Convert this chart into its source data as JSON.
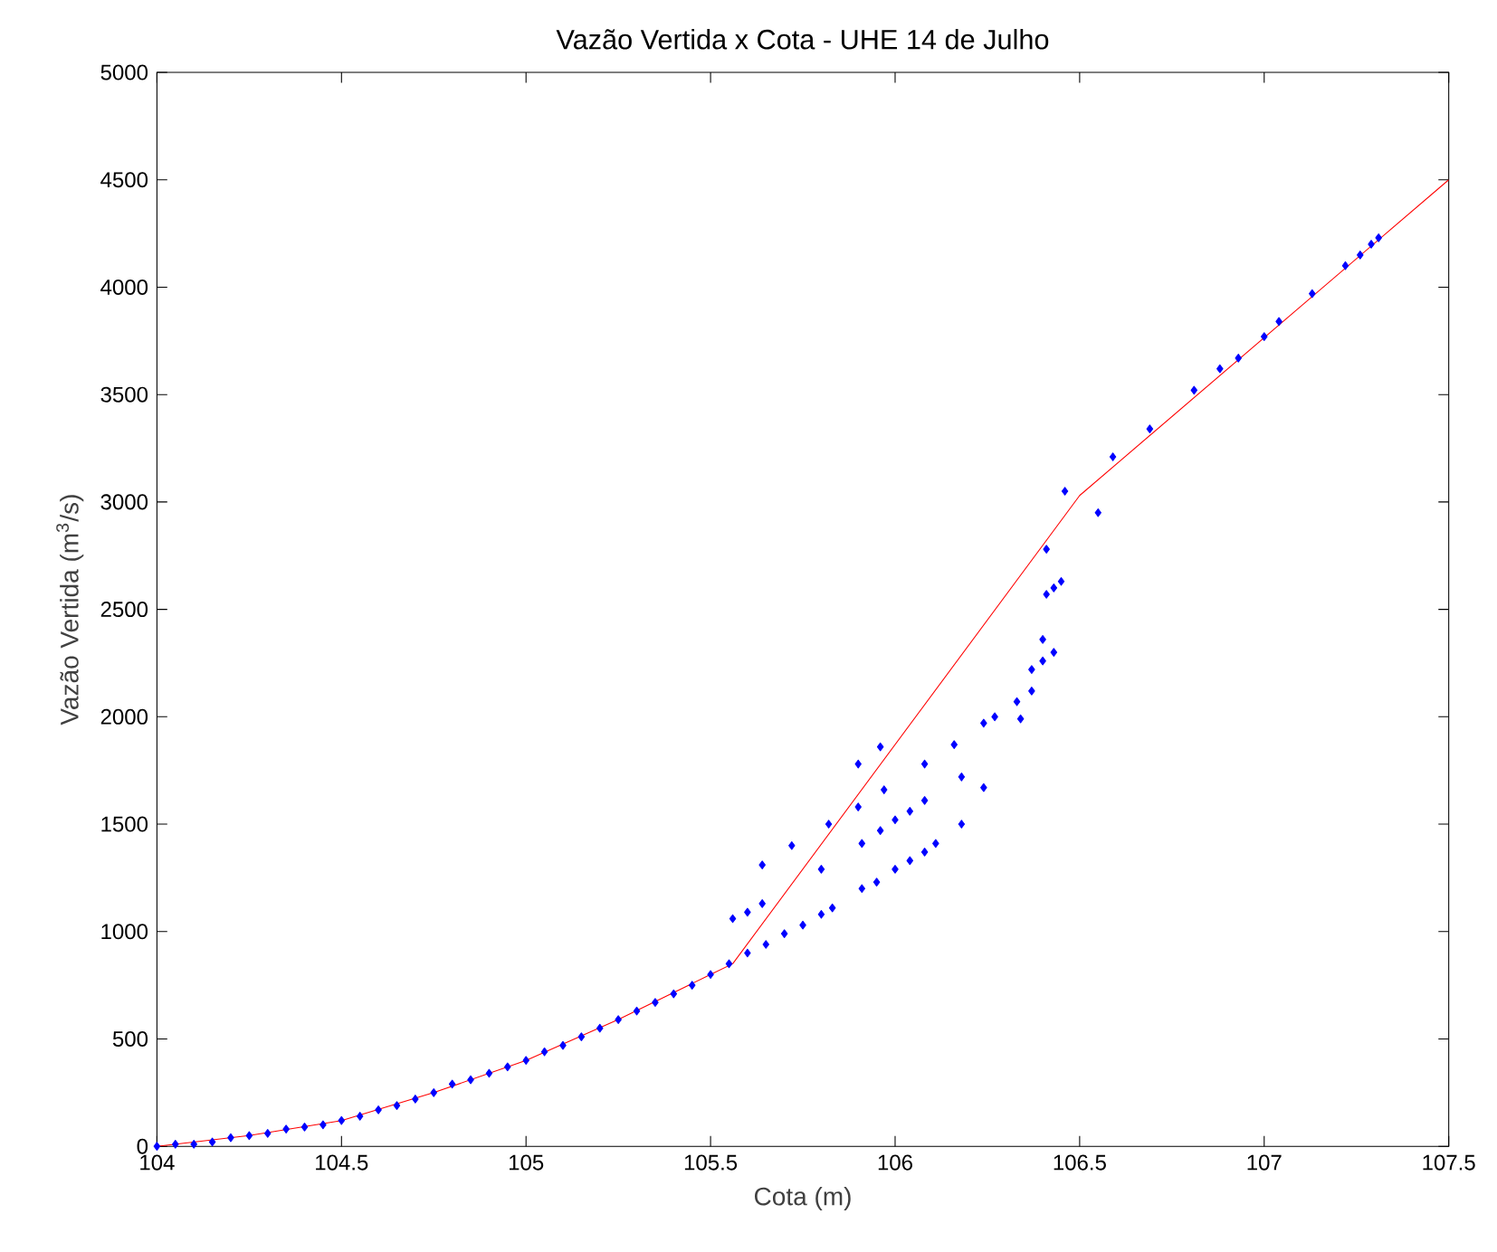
{
  "chart_data": {
    "type": "scatter",
    "title": "Vazão Vertida x Cota - UHE 14 de Julho",
    "xlabel": "Cota (m)",
    "ylabel": "Vazão Vertida (m$^{3}$/s)",
    "xlim": [
      104,
      107.5
    ],
    "ylim": [
      0,
      5000
    ],
    "xticks": [
      104,
      104.5,
      105,
      105.5,
      106,
      106.5,
      107,
      107.5
    ],
    "yticks": [
      0,
      500,
      1000,
      1500,
      2000,
      2500,
      3000,
      3500,
      4000,
      4500,
      5000
    ],
    "grid": false,
    "series": [
      {
        "color": "#0000ff",
        "marker": "diamond",
        "x": [
          104,
          104.05,
          104.1,
          104.15,
          104.2,
          104.25,
          104.3,
          104.35,
          104.4,
          104.45,
          104.5,
          104.55,
          104.6,
          104.65,
          104.7,
          104.75,
          104.8,
          104.85,
          104.9,
          104.95,
          105,
          105.05,
          105.1,
          105.15,
          105.2,
          105.25,
          105.3,
          105.35,
          105.4,
          105.45,
          105.5,
          105.55,
          105.6,
          105.65,
          105.7,
          105.75,
          105.8,
          105.83,
          105.91,
          105.95,
          106.0,
          106.04,
          106.08,
          106.11,
          105.91,
          105.96,
          106.0,
          106.04,
          106.08,
          105.56,
          105.6,
          105.64,
          105.64,
          105.72,
          105.8,
          105.82,
          105.9,
          105.9,
          105.96,
          105.97,
          106.08,
          106.18,
          106.18,
          106.16,
          106.24,
          106.24,
          106.27,
          106.34,
          106.33,
          106.37,
          106.37,
          106.4,
          106.43,
          106.4,
          106.41,
          106.43,
          106.45,
          106.41,
          106.46,
          106.55,
          106.59,
          106.69,
          106.81,
          106.88,
          106.93,
          107.0,
          107.04,
          107.13,
          107.22,
          107.26,
          107.29,
          107.31
        ],
        "values": [
          0,
          10,
          10,
          20,
          40,
          50,
          60,
          80,
          90,
          100,
          120,
          140,
          170,
          190,
          220,
          250,
          290,
          310,
          340,
          370,
          400,
          440,
          470,
          510,
          550,
          590,
          630,
          670,
          710,
          750,
          800,
          850,
          900,
          940,
          990,
          1030,
          1080,
          1110,
          1200,
          1230,
          1290,
          1330,
          1370,
          1410,
          1410,
          1470,
          1520,
          1560,
          1610,
          1060,
          1090,
          1130,
          1310,
          1400,
          1290,
          1500,
          1580,
          1780,
          1860,
          1660,
          1780,
          1500,
          1720,
          1870,
          1670,
          1970,
          2000,
          1990,
          2070,
          2120,
          2220,
          2260,
          2300,
          2360,
          2570,
          2600,
          2630,
          2780,
          3050,
          2950,
          3210,
          3340,
          3520,
          3620,
          3670,
          3770,
          3840,
          3970,
          4100,
          4150,
          4200,
          4230
        ]
      },
      {
        "type": "line",
        "color": "#ff0000",
        "marker": "none",
        "x": [
          104,
          104.25,
          104.5,
          104.75,
          105,
          105.25,
          105.5,
          105.56,
          106.5,
          107.5
        ],
        "values": [
          0,
          50,
          120,
          250,
          400,
          590,
          800,
          850,
          3030,
          4500
        ]
      }
    ]
  }
}
